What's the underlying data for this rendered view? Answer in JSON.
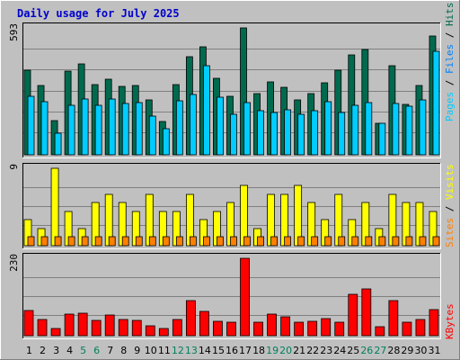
{
  "title": "Daily usage for July 2025",
  "colors": {
    "hits": "#006a4e",
    "files": "#0080ff",
    "pages": "#00ccff",
    "visits": "#ffff00",
    "sites": "#ff8000",
    "kbytes": "#ff0000",
    "weekend_day": "#00805c",
    "weekday": "#000000",
    "title": "#0000cc",
    "panel_bg": "#c0c0c0"
  },
  "legend": {
    "top": [
      "Pages",
      "Files",
      "Hits"
    ],
    "middle": [
      "Sites",
      "Visits"
    ],
    "bottom": [
      "KBytes"
    ],
    "sep": " / "
  },
  "chart_data": [
    {
      "type": "bar",
      "title": "Daily usage for July 2025",
      "ymax_label": "593",
      "ylim": [
        0,
        593
      ],
      "categories": [
        "1",
        "2",
        "3",
        "4",
        "5",
        "6",
        "7",
        "8",
        "9",
        "10",
        "11",
        "12",
        "13",
        "14",
        "15",
        "16",
        "17",
        "18",
        "19",
        "20",
        "21",
        "22",
        "23",
        "24",
        "25",
        "26",
        "27",
        "28",
        "29",
        "30",
        "31"
      ],
      "weekend_days": [
        "5",
        "6",
        "12",
        "13",
        "19",
        "20",
        "26",
        "27"
      ],
      "series": [
        {
          "name": "Hits",
          "values": [
            397,
            322,
            160,
            391,
            426,
            328,
            355,
            320,
            323,
            256,
            156,
            330,
            460,
            503,
            358,
            273,
            593,
            288,
            339,
            315,
            258,
            284,
            335,
            395,
            468,
            491,
            148,
            418,
            235,
            323,
            555
          ]
        },
        {
          "name": "Files",
          "values": [
            272,
            250,
            102,
            232,
            262,
            232,
            260,
            241,
            242,
            179,
            123,
            253,
            281,
            418,
            269,
            189,
            246,
            206,
            196,
            212,
            190,
            207,
            250,
            199,
            231,
            246,
            149,
            241,
            228,
            255,
            484
          ]
        },
        {
          "name": "Pages",
          "values": [
            272,
            250,
            102,
            232,
            262,
            232,
            260,
            241,
            242,
            179,
            123,
            253,
            281,
            418,
            269,
            189,
            246,
            206,
            196,
            212,
            190,
            207,
            250,
            199,
            231,
            246,
            149,
            241,
            228,
            255,
            484
          ]
        }
      ]
    },
    {
      "type": "bar",
      "ymax_label": "9",
      "ylim": [
        0,
        9
      ],
      "categories": [
        "1",
        "2",
        "3",
        "4",
        "5",
        "6",
        "7",
        "8",
        "9",
        "10",
        "11",
        "12",
        "13",
        "14",
        "15",
        "16",
        "17",
        "18",
        "19",
        "20",
        "21",
        "22",
        "23",
        "24",
        "25",
        "26",
        "27",
        "28",
        "29",
        "30",
        "31"
      ],
      "series": [
        {
          "name": "Visits",
          "values": [
            3,
            2,
            9,
            4,
            2,
            5,
            6,
            5,
            4,
            6,
            4,
            4,
            6,
            3,
            4,
            5,
            7,
            2,
            6,
            6,
            7,
            5,
            3,
            6,
            3,
            5,
            2,
            6,
            5,
            5,
            4
          ]
        },
        {
          "name": "Sites",
          "values": [
            1,
            1,
            1,
            1,
            1,
            1,
            1,
            1,
            1,
            1,
            1,
            1,
            1,
            1,
            1,
            1,
            1,
            1,
            1,
            1,
            1,
            1,
            1,
            1,
            1,
            1,
            1,
            1,
            1,
            1,
            1
          ]
        }
      ]
    },
    {
      "type": "bar",
      "ymax_label": "230",
      "ylim": [
        0,
        230
      ],
      "categories": [
        "1",
        "2",
        "3",
        "4",
        "5",
        "6",
        "7",
        "8",
        "9",
        "10",
        "11",
        "12",
        "13",
        "14",
        "15",
        "16",
        "17",
        "18",
        "19",
        "20",
        "21",
        "22",
        "23",
        "24",
        "25",
        "26",
        "27",
        "28",
        "29",
        "30",
        "31"
      ],
      "series": [
        {
          "name": "KBytes",
          "values": [
            74,
            47,
            22,
            64,
            68,
            46,
            62,
            47,
            45,
            30,
            22,
            47,
            103,
            71,
            44,
            40,
            230,
            41,
            63,
            57,
            41,
            43,
            52,
            41,
            123,
            138,
            28,
            104,
            40,
            48,
            77
          ]
        }
      ]
    }
  ]
}
